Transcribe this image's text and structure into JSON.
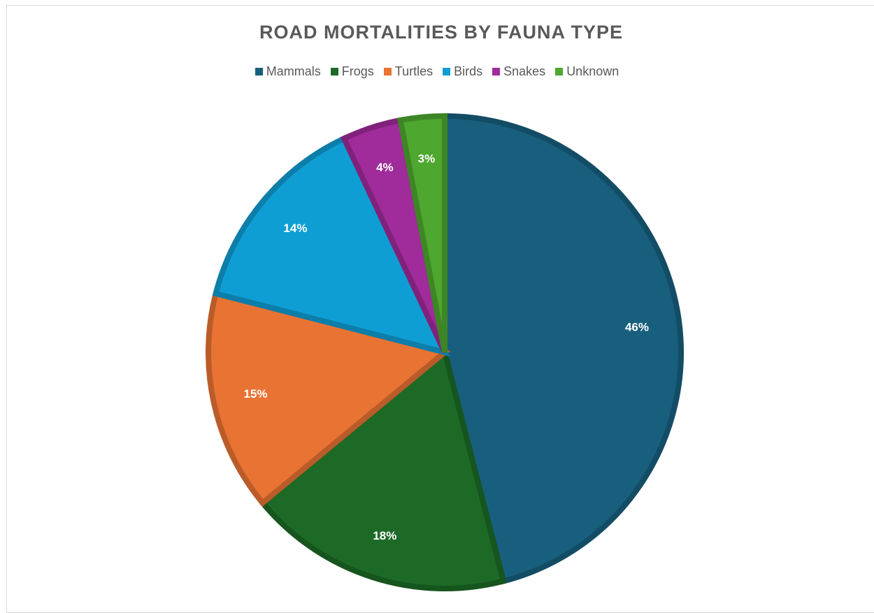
{
  "chart_data": {
    "type": "pie",
    "title": "ROAD MORTALITIES BY FAUNA TYPE",
    "categories": [
      "Mammals",
      "Frogs",
      "Turtles",
      "Birds",
      "Snakes",
      "Unknown"
    ],
    "values": [
      46,
      18,
      15,
      14,
      4,
      3
    ],
    "value_labels": [
      "46%",
      "18%",
      "15%",
      "14%",
      "4%",
      "3%"
    ],
    "colors": [
      "#185f7e",
      "#1c6a26",
      "#e97333",
      "#0f9ed3",
      "#a02b9a",
      "#4ea72e"
    ],
    "legend": "top"
  }
}
